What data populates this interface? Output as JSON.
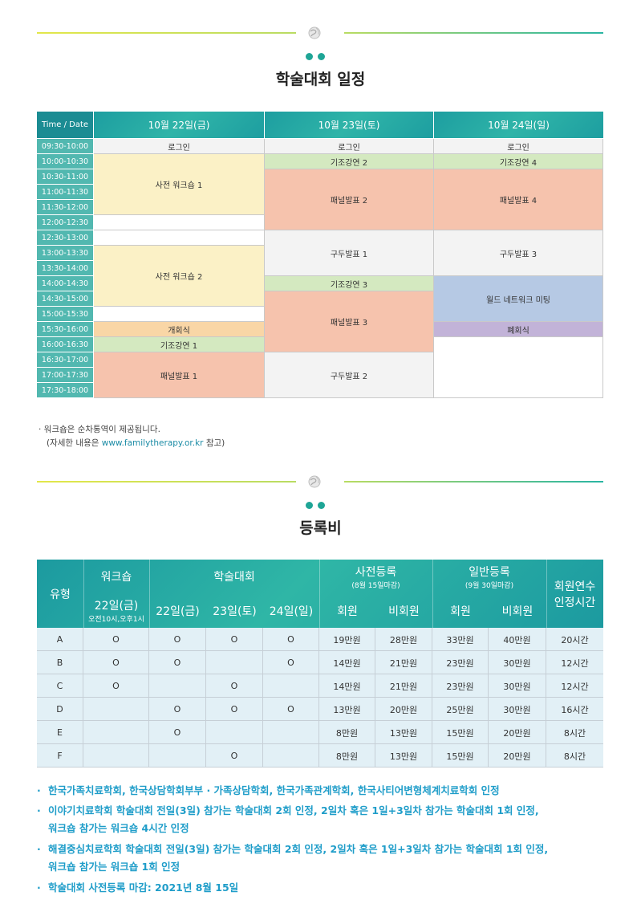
{
  "schedule": {
    "title": "학술대회 일정",
    "header": {
      "time": "Time / Date",
      "day1": "10월 22일(금)",
      "day2": "10월 23일(토)",
      "day3": "10월 24일(일)"
    },
    "times": [
      "09:30-10:00",
      "10:00-10:30",
      "10:30-11:00",
      "11:00-11:30",
      "11:30-12:00",
      "12:00-12:30",
      "12:30-13:00",
      "13:00-13:30",
      "13:30-14:00",
      "14:00-14:30",
      "14:30-15:00",
      "15:00-15:30",
      "15:30-16:00",
      "16:00-16:30",
      "16:30-17:00",
      "17:00-17:30",
      "17:30-18:00"
    ],
    "day1": [
      {
        "label": "로그인",
        "start": 0,
        "span": 1,
        "color": "gray"
      },
      {
        "label": "사전 워크숍 1",
        "start": 1,
        "span": 4,
        "color": "yellow"
      },
      {
        "label": "",
        "start": 5,
        "span": 1,
        "color": "white"
      },
      {
        "label": "",
        "start": 6,
        "span": 1,
        "color": "white"
      },
      {
        "label": "사전 워크숍 2",
        "start": 7,
        "span": 4,
        "color": "yellow"
      },
      {
        "label": "",
        "start": 11,
        "span": 1,
        "color": "white"
      },
      {
        "label": "개회식",
        "start": 12,
        "span": 1,
        "color": "orange"
      },
      {
        "label": "기조강연 1",
        "start": 13,
        "span": 1,
        "color": "green"
      },
      {
        "label": "패널발표 1",
        "start": 14,
        "span": 3,
        "color": "salmon"
      }
    ],
    "day2": [
      {
        "label": "로그인",
        "start": 0,
        "span": 1,
        "color": "gray"
      },
      {
        "label": "기조강연 2",
        "start": 1,
        "span": 1,
        "color": "green"
      },
      {
        "label": "패널발표 2",
        "start": 2,
        "span": 4,
        "color": "salmon"
      },
      {
        "label": "구두발표 1",
        "start": 6,
        "span": 3,
        "color": "gray"
      },
      {
        "label": "기조강연 3",
        "start": 9,
        "span": 1,
        "color": "green"
      },
      {
        "label": "패널발표 3",
        "start": 10,
        "span": 4,
        "color": "salmon"
      },
      {
        "label": "구두발표 2",
        "start": 14,
        "span": 3,
        "color": "gray"
      }
    ],
    "day3": [
      {
        "label": "로그인",
        "start": 0,
        "span": 1,
        "color": "gray"
      },
      {
        "label": "기조강연 4",
        "start": 1,
        "span": 1,
        "color": "green"
      },
      {
        "label": "패널발표 4",
        "start": 2,
        "span": 4,
        "color": "salmon"
      },
      {
        "label": "구두발표 3",
        "start": 6,
        "span": 3,
        "color": "gray"
      },
      {
        "label": "월드 네트워크 미팅",
        "start": 9,
        "span": 3,
        "color": "blue"
      },
      {
        "label": "폐회식",
        "start": 12,
        "span": 1,
        "color": "purple"
      },
      {
        "label": "",
        "start": 13,
        "span": 4,
        "color": "white"
      }
    ]
  },
  "notes": {
    "line1": "· 워크숍은 순차통역이 제공됩니다.",
    "line2_pre": "(자세한 내용은 ",
    "line2_link": "www.familytherapy.or.kr",
    "line2_post": " 참고)"
  },
  "fees": {
    "title": "등록비",
    "headers": {
      "type": "유형",
      "workshop": "워크숍",
      "workshop_day": "22일(금)",
      "workshop_time": "오전10시,오후1시",
      "conference": "학술대회",
      "d22": "22일(금)",
      "d23": "23일(토)",
      "d24": "24일(일)",
      "early": "사전등록",
      "early_sub": "(8월 15일마감)",
      "regular": "일반등록",
      "regular_sub": "(9월 30일마감)",
      "member": "회원",
      "nonmember": "비회원",
      "credit1": "회원연수",
      "credit2": "인정시간"
    },
    "rows": [
      [
        "A",
        "O",
        "O",
        "O",
        "O",
        "19만원",
        "28만원",
        "33만원",
        "40만원",
        "20시간"
      ],
      [
        "B",
        "O",
        "O",
        "",
        "O",
        "14만원",
        "21만원",
        "23만원",
        "30만원",
        "12시간"
      ],
      [
        "C",
        "O",
        "",
        "O",
        "",
        "14만원",
        "21만원",
        "23만원",
        "30만원",
        "12시간"
      ],
      [
        "D",
        "",
        "O",
        "O",
        "O",
        "13만원",
        "20만원",
        "25만원",
        "30만원",
        "16시간"
      ],
      [
        "E",
        "",
        "O",
        "",
        "",
        "8만원",
        "13만원",
        "15만원",
        "20만원",
        "8시간"
      ],
      [
        "F",
        "",
        "",
        "O",
        "",
        "8만원",
        "13만원",
        "15만원",
        "20만원",
        "8시간"
      ]
    ]
  },
  "bullets": [
    {
      "text": "한국가족치료학회, 한국상담학회부부 · 가족상담학회, 한국가족관계학회, 한국사티어변형체계치료학회 인정"
    },
    {
      "text": "이야기치료학회 학술대회 전일(3일) 참가는 학술대회 2회 인정, 2일차 혹은 1일+3일차 참가는 학술대회 1회 인정,",
      "cont": "워크숍 참가는 워크숍 4시간 인정"
    },
    {
      "text": "해결중심치료학회 학술대회 전일(3일) 참가는 학술대회 2회 인정, 2일차 혹은 1일+3일차 참가는 학술대회 1회 인정,",
      "cont": "워크숍 참가는 워크숍 1회 인정"
    },
    {
      "text": "학술대회 사전등록 마감: 2021년 8월 15일"
    }
  ],
  "colors": {
    "teal": "#1fa596",
    "bullet_text": "#1f9dc9"
  }
}
